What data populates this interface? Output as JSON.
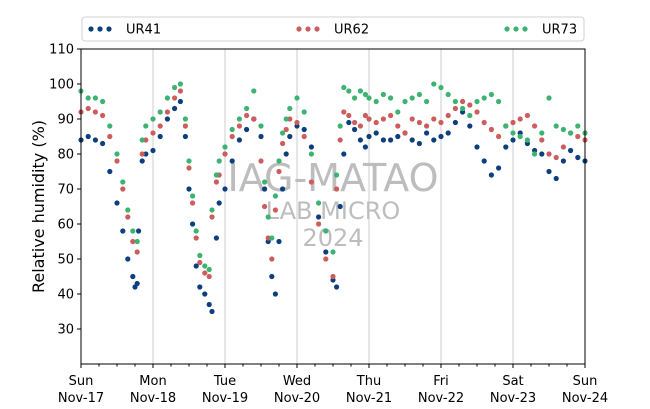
{
  "chart_data": {
    "type": "scatter",
    "xlabel": "",
    "ylabel": "Relative humidity (%)",
    "ylim": [
      20,
      110
    ],
    "yticks": [
      30,
      40,
      50,
      60,
      70,
      80,
      90,
      100,
      110
    ],
    "xlim": [
      0,
      7
    ],
    "xticks": [
      {
        "pos": 0,
        "day": "Sun",
        "date": "Nov-17"
      },
      {
        "pos": 1,
        "day": "Mon",
        "date": "Nov-18"
      },
      {
        "pos": 2,
        "day": "Tue",
        "date": "Nov-19"
      },
      {
        "pos": 3,
        "day": "Wed",
        "date": "Nov-20"
      },
      {
        "pos": 4,
        "day": "Thu",
        "date": "Nov-21"
      },
      {
        "pos": 5,
        "day": "Fri",
        "date": "Nov-22"
      },
      {
        "pos": 6,
        "day": "Sat",
        "date": "Nov-23"
      },
      {
        "pos": 7,
        "day": "Sun",
        "date": "Nov-24"
      }
    ],
    "vgrid": true,
    "legend_position": "top",
    "watermark": [
      "IAG-MATAO",
      "LAB MICRO",
      "2024"
    ],
    "series": [
      {
        "name": "UR41",
        "color": "#0d3f7f",
        "x": [
          0.0,
          0.1,
          0.2,
          0.3,
          0.4,
          0.5,
          0.58,
          0.65,
          0.72,
          0.75,
          0.78,
          0.8,
          0.85,
          0.9,
          1.0,
          1.1,
          1.2,
          1.3,
          1.38,
          1.45,
          1.5,
          1.55,
          1.6,
          1.65,
          1.72,
          1.78,
          1.82,
          1.88,
          1.92,
          2.0,
          2.1,
          2.2,
          2.3,
          2.4,
          2.5,
          2.55,
          2.6,
          2.65,
          2.7,
          2.75,
          2.8,
          2.85,
          2.9,
          3.0,
          3.1,
          3.2,
          3.3,
          3.4,
          3.5,
          3.55,
          3.6,
          3.65,
          3.72,
          3.8,
          3.88,
          3.95,
          4.0,
          4.1,
          4.2,
          4.3,
          4.4,
          4.5,
          4.6,
          4.7,
          4.8,
          4.9,
          5.0,
          5.1,
          5.2,
          5.3,
          5.4,
          5.5,
          5.6,
          5.7,
          5.8,
          5.9,
          6.0,
          6.1,
          6.2,
          6.3,
          6.4,
          6.5,
          6.6,
          6.7,
          6.8,
          6.9,
          7.0
        ],
        "y": [
          84,
          85,
          84,
          83,
          75,
          66,
          58,
          50,
          45,
          42,
          43,
          58,
          78,
          80,
          81,
          85,
          90,
          93,
          95,
          85,
          70,
          60,
          48,
          42,
          40,
          37,
          35,
          56,
          66,
          70,
          78,
          84,
          87,
          90,
          85,
          70,
          55,
          45,
          40,
          55,
          70,
          80,
          85,
          88,
          87,
          82,
          62,
          52,
          44,
          42,
          65,
          80,
          89,
          87,
          84,
          82,
          85,
          86,
          84,
          84,
          85,
          86,
          84,
          83,
          86,
          84,
          85,
          86,
          89,
          92,
          88,
          82,
          78,
          74,
          76,
          82,
          84,
          86,
          83,
          81,
          80,
          75,
          73,
          78,
          81,
          79,
          78
        ]
      },
      {
        "name": "UR62",
        "color": "#cd5c5c",
        "x": [
          0.0,
          0.1,
          0.2,
          0.3,
          0.4,
          0.5,
          0.58,
          0.65,
          0.72,
          0.78,
          0.85,
          0.9,
          1.0,
          1.1,
          1.2,
          1.3,
          1.38,
          1.45,
          1.5,
          1.55,
          1.6,
          1.65,
          1.72,
          1.78,
          1.82,
          1.88,
          1.92,
          2.0,
          2.1,
          2.2,
          2.3,
          2.4,
          2.5,
          2.55,
          2.6,
          2.65,
          2.7,
          2.75,
          2.8,
          2.85,
          2.9,
          3.0,
          3.1,
          3.2,
          3.3,
          3.4,
          3.5,
          3.55,
          3.6,
          3.65,
          3.72,
          3.8,
          3.88,
          3.95,
          4.0,
          4.1,
          4.2,
          4.3,
          4.4,
          4.5,
          4.6,
          4.7,
          4.8,
          4.9,
          5.0,
          5.1,
          5.2,
          5.3,
          5.4,
          5.5,
          5.6,
          5.7,
          5.8,
          5.9,
          6.0,
          6.1,
          6.2,
          6.3,
          6.4,
          6.5,
          6.6,
          6.7,
          6.8,
          6.9,
          7.0
        ],
        "y": [
          92,
          93,
          92,
          91,
          85,
          78,
          70,
          62,
          55,
          52,
          80,
          84,
          86,
          88,
          92,
          96,
          98,
          88,
          76,
          66,
          56,
          49,
          46,
          45,
          62,
          72,
          74,
          80,
          85,
          88,
          91,
          90,
          78,
          65,
          56,
          50,
          64,
          75,
          83,
          87,
          90,
          89,
          85,
          72,
          60,
          50,
          45,
          70,
          84,
          92,
          91,
          89,
          88,
          91,
          90,
          89,
          90,
          91,
          88,
          86,
          90,
          89,
          88,
          90,
          89,
          91,
          93,
          95,
          94,
          92,
          89,
          87,
          85,
          88,
          89,
          90,
          91,
          88,
          84,
          80,
          79,
          82,
          86,
          85,
          84
        ]
      },
      {
        "name": "UR73",
        "color": "#3cb371",
        "x": [
          0.0,
          0.1,
          0.2,
          0.3,
          0.4,
          0.5,
          0.58,
          0.65,
          0.72,
          0.78,
          0.85,
          0.9,
          1.0,
          1.1,
          1.2,
          1.3,
          1.38,
          1.45,
          1.5,
          1.55,
          1.6,
          1.65,
          1.72,
          1.78,
          1.82,
          1.88,
          1.92,
          2.0,
          2.1,
          2.2,
          2.3,
          2.4,
          2.5,
          2.55,
          2.6,
          2.65,
          2.7,
          2.75,
          2.8,
          2.85,
          2.9,
          3.0,
          3.1,
          3.2,
          3.3,
          3.4,
          3.5,
          3.55,
          3.6,
          3.65,
          3.72,
          3.8,
          3.88,
          3.95,
          4.0,
          4.1,
          4.2,
          4.3,
          4.4,
          4.5,
          4.6,
          4.7,
          4.8,
          4.9,
          5.0,
          5.1,
          5.2,
          5.3,
          5.4,
          5.5,
          5.6,
          5.7,
          5.8,
          5.9,
          6.0,
          6.1,
          6.2,
          6.3,
          6.4,
          6.5,
          6.6,
          6.7,
          6.8,
          6.9,
          7.0
        ],
        "y": [
          98,
          96,
          96,
          95,
          88,
          80,
          72,
          64,
          58,
          55,
          84,
          88,
          90,
          92,
          96,
          99,
          100,
          90,
          78,
          68,
          58,
          51,
          48,
          47,
          64,
          74,
          78,
          82,
          87,
          90,
          93,
          98,
          88,
          72,
          62,
          56,
          68,
          78,
          86,
          90,
          93,
          96,
          92,
          80,
          66,
          58,
          52,
          74,
          88,
          99,
          98,
          96,
          98,
          97,
          96,
          95,
          97,
          96,
          92,
          95,
          96,
          97,
          95,
          100,
          99,
          97,
          95,
          93,
          91,
          95,
          96,
          97,
          95,
          88,
          86,
          85,
          84,
          80,
          86,
          96,
          88,
          87,
          86,
          88,
          86
        ]
      }
    ]
  }
}
